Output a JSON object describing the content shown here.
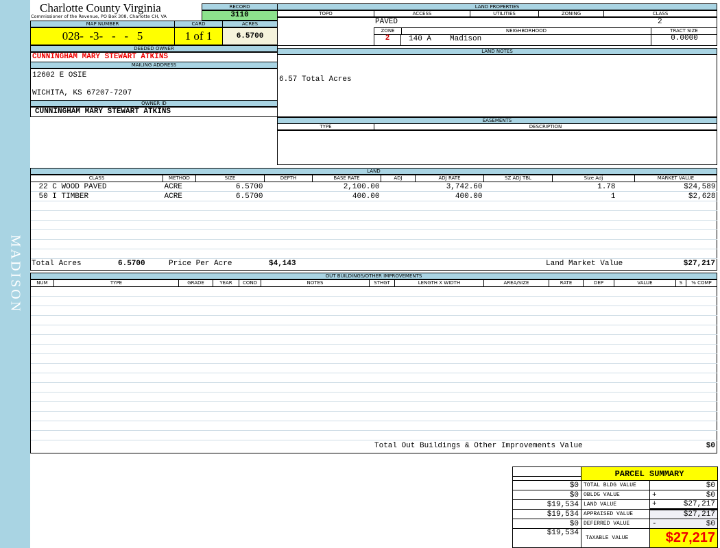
{
  "sidebar": {
    "label": "MADISON"
  },
  "header": {
    "title": "Charlotte County Virginia",
    "subtitle": "Commissioner of the Revenue, PO Box 308, Charlotte CH, VA",
    "record_label": "RECORD",
    "record": "3110"
  },
  "parcel": {
    "map_number_label": "MAP NUMBER",
    "map_number": "028-  -3-   -   -   5",
    "card_label": "CARD",
    "card": "1 of 1",
    "acres_label": "ACRES",
    "acres": "6.5700"
  },
  "owner": {
    "deeded_label": "DEEDED OWNER",
    "deeded": "CUNNINGHAM MARY STEWART ATKINS",
    "mailing_label": "MAILING ADDRESS",
    "address1": "12602 E OSIE",
    "address2": "WICHITA, KS 67207-7207",
    "owner_id_label": "OWNER ID",
    "owner_id": "CUNNINGHAM MARY STEWART ATKINS"
  },
  "land_properties": {
    "title": "LAND PROPERTIES",
    "columns": [
      "TOPO",
      "ACCESS",
      "UTILITIES",
      "ZONING",
      "CLASS"
    ],
    "access": "PAVED",
    "class": "2",
    "zone_label": "ZONE",
    "neighborhood_label": "NEIGHBORHOOD",
    "tract_label": "TRACT SIZE",
    "zone": "2",
    "neighborhood_code": "140 A",
    "neighborhood": "Madison",
    "tract_size": "0.0000"
  },
  "land_notes": {
    "title": "LAND NOTES",
    "text": "6.57 Total Acres"
  },
  "easements": {
    "title": "EASEMENTS",
    "columns": [
      "TYPE",
      "DESCRIPTION"
    ]
  },
  "land": {
    "title": "LAND",
    "columns": [
      "CLASS",
      "METHOD",
      "SIZE",
      "DEPTH",
      "BASE RATE",
      "ADJ",
      "ADJ RATE",
      "SZ ADJ TBL",
      "Size Adj",
      "MARKET VALUE"
    ],
    "rows": [
      [
        "22 C WOOD PAVED",
        "ACRE",
        "6.5700",
        "",
        "2,100.00",
        "",
        "3,742.60",
        "",
        "1.78",
        "$24,589"
      ],
      [
        "50 I TIMBER",
        "ACRE",
        "6.5700",
        "",
        "400.00",
        "",
        "400.00",
        "",
        "1",
        "$2,628"
      ]
    ],
    "total_acres_label": "Total Acres",
    "total_acres": "6.5700",
    "price_per_acre_label": "Price Per Acre",
    "price_per_acre": "$4,143",
    "market_value_label": "Land Market Value",
    "market_value": "$27,217"
  },
  "outbuildings": {
    "title": "OUT BUILDINGS/OTHER IMPROVEMENTS",
    "columns": [
      "NUM",
      "TYPE",
      "GRADE",
      "YEAR",
      "COND",
      "NOTES",
      "STHGT",
      "LENGTH X WIDTH",
      "AREA/SIZE",
      "RATE",
      "DEP",
      "VALUE",
      "S",
      "% COMP"
    ],
    "total_label": "Total Out Buildings & Other Improvements Value",
    "total": "$0"
  },
  "summary": {
    "title": "PARCEL SUMMARY",
    "rows": [
      {
        "prior": "$0",
        "label": "TOTAL BLDG VALUE",
        "op": "",
        "value": "$0"
      },
      {
        "prior": "$0",
        "label": "OBLDG VALUE",
        "op": "+",
        "value": "$0"
      },
      {
        "prior": "$19,534",
        "label": "LAND VALUE",
        "op": "+",
        "value": "$27,217"
      },
      {
        "prior": "$19,534",
        "label": "APPRAISED VALUE",
        "op": "",
        "value": "$27,217"
      },
      {
        "prior": "$0",
        "label": "DEFERRED VALUE",
        "op": "-",
        "value": "$0"
      }
    ],
    "taxable_prior": "$19,534",
    "taxable_label": "TAXABLE VALUE",
    "taxable": "$27,217"
  }
}
